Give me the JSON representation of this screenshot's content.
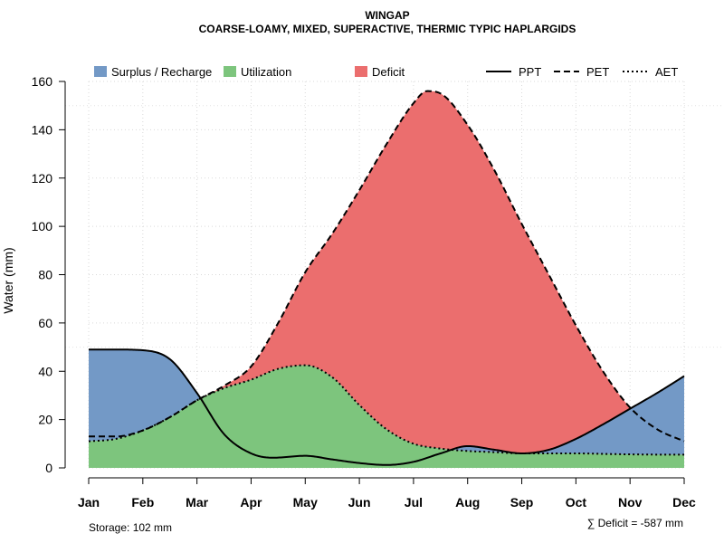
{
  "chart_data": {
    "type": "area",
    "title": "WINGAP",
    "subtitle": "COARSE-LOAMY, MIXED, SUPERACTIVE, THERMIC TYPIC HAPLARGIDS",
    "ylabel": "Water (mm)",
    "xlabel": "",
    "ylim": [
      0,
      160
    ],
    "yticks": [
      0,
      20,
      40,
      60,
      80,
      100,
      120,
      140,
      160
    ],
    "categories": [
      "Jan",
      "Feb",
      "Mar",
      "Apr",
      "May",
      "Jun",
      "Jul",
      "Aug",
      "Sep",
      "Oct",
      "Nov",
      "Dec"
    ],
    "grid": true,
    "series": [
      {
        "name": "PPT",
        "style": "solid",
        "values": [
          [
            0,
            49
          ],
          [
            0.5,
            49
          ],
          [
            1,
            48.7
          ],
          [
            1.5,
            45
          ],
          [
            2,
            31
          ],
          [
            2.5,
            14
          ],
          [
            3,
            6
          ],
          [
            3.4,
            4.2
          ],
          [
            4,
            5
          ],
          [
            4.5,
            3.5
          ],
          [
            5,
            2
          ],
          [
            5.5,
            1.2
          ],
          [
            6,
            2.5
          ],
          [
            6.5,
            6
          ],
          [
            7,
            9
          ],
          [
            7.5,
            7.5
          ],
          [
            8,
            6
          ],
          [
            8.5,
            7.5
          ],
          [
            9,
            12
          ],
          [
            9.5,
            18
          ],
          [
            10,
            24.5
          ],
          [
            10.5,
            31
          ],
          [
            11,
            38
          ]
        ]
      },
      {
        "name": "PET",
        "style": "dashed",
        "values": [
          [
            0,
            13
          ],
          [
            0.5,
            13
          ],
          [
            1,
            15.5
          ],
          [
            1.5,
            21
          ],
          [
            2,
            28
          ],
          [
            2.5,
            34
          ],
          [
            3,
            42
          ],
          [
            3.5,
            60
          ],
          [
            4,
            81
          ],
          [
            4.5,
            97
          ],
          [
            5,
            115
          ],
          [
            5.5,
            134
          ],
          [
            6,
            151
          ],
          [
            6.25,
            156
          ],
          [
            6.5,
            155
          ],
          [
            7,
            142
          ],
          [
            7.5,
            123
          ],
          [
            8,
            101
          ],
          [
            8.5,
            80
          ],
          [
            9,
            59
          ],
          [
            9.5,
            40
          ],
          [
            10,
            25
          ],
          [
            10.5,
            16
          ],
          [
            11,
            11
          ]
        ]
      },
      {
        "name": "AET",
        "style": "dotted",
        "values": [
          [
            0,
            11
          ],
          [
            0.5,
            12
          ],
          [
            1,
            15.5
          ],
          [
            1.5,
            21
          ],
          [
            2,
            28
          ],
          [
            2.5,
            33
          ],
          [
            3,
            36.5
          ],
          [
            3.5,
            41
          ],
          [
            4,
            42.5
          ],
          [
            4.5,
            37.5
          ],
          [
            5,
            26
          ],
          [
            5.5,
            16
          ],
          [
            6,
            10
          ],
          [
            6.5,
            8
          ],
          [
            7,
            7
          ],
          [
            7.5,
            6.5
          ],
          [
            8,
            6
          ],
          [
            8.5,
            6
          ],
          [
            9,
            6
          ],
          [
            9.5,
            5.8
          ],
          [
            10,
            5.6
          ],
          [
            10.5,
            5.5
          ],
          [
            11,
            5.5
          ]
        ]
      }
    ],
    "areas": [
      {
        "name": "Surplus / Recharge",
        "color": "#7399c6",
        "between": [
          "AET",
          "PPT"
        ]
      },
      {
        "name": "Utilization",
        "color": "#7dc57d",
        "between": [
          "zero",
          "AET"
        ]
      },
      {
        "name": "Deficit",
        "color": "#eb6e6e",
        "between": [
          "AET",
          "PET"
        ]
      }
    ],
    "legend": {
      "position": "top",
      "fill_items": [
        "Surplus / Recharge",
        "Utilization",
        "Deficit"
      ],
      "line_items": [
        "PPT",
        "PET",
        "AET"
      ]
    },
    "reference_lines": [
      50,
      150
    ],
    "annotations": {
      "storage": "Storage: 102 mm",
      "deficit": "∑ Deficit = -587 mm"
    }
  }
}
